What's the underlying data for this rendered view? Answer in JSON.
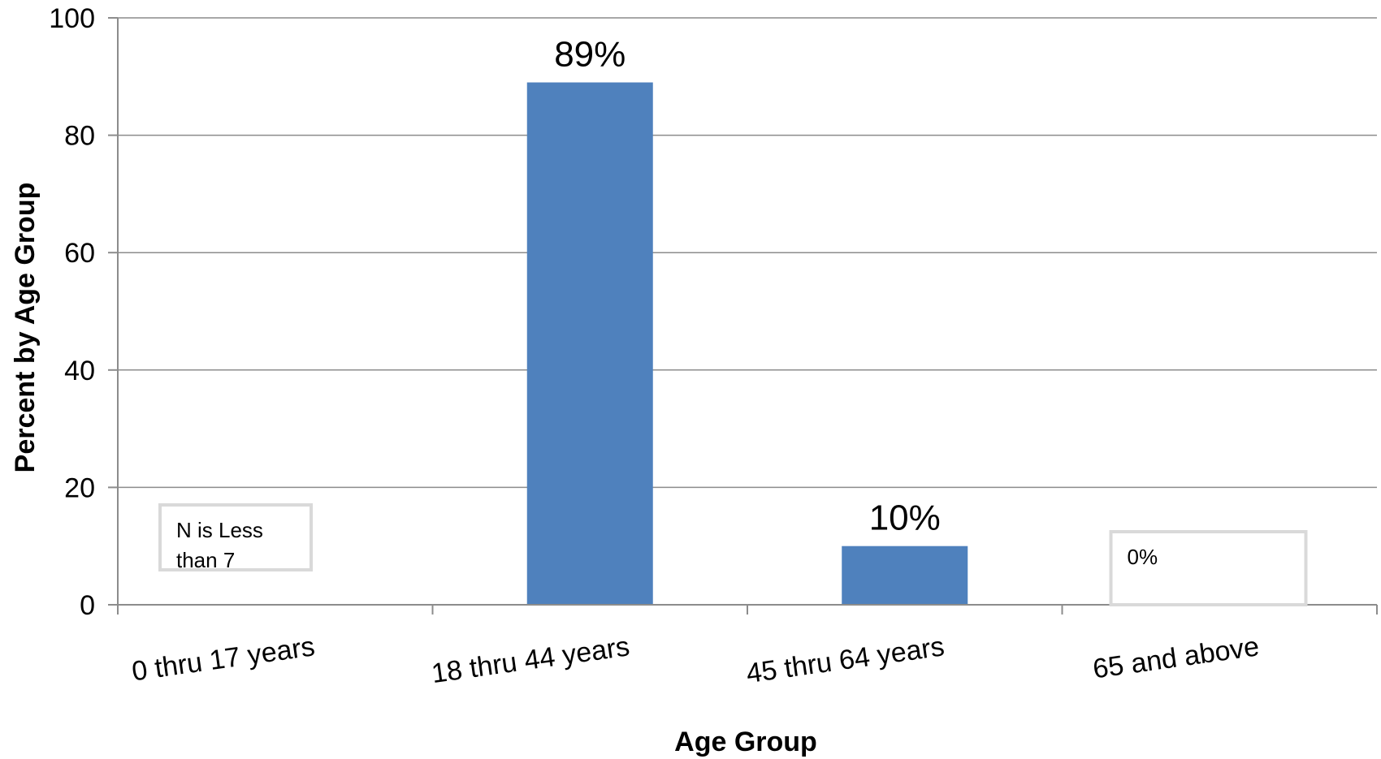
{
  "chart_data": {
    "type": "bar",
    "title": "",
    "xlabel": "Age Group",
    "ylabel": "Percent by Age Group",
    "categories": [
      "0 thru 17 years",
      "18 thru 44 years",
      "45 thru 64 years",
      "65 and above"
    ],
    "values": [
      null,
      89,
      10,
      0
    ],
    "data_labels": [
      "",
      "89%",
      "10%",
      ""
    ],
    "notes": [
      {
        "category_index": 0,
        "text_lines": [
          "N is  Less",
          "than 7"
        ]
      },
      {
        "category_index": 3,
        "text_lines": [
          "0%"
        ]
      }
    ],
    "ylim": [
      0,
      100
    ],
    "yticks": [
      0,
      20,
      40,
      60,
      80,
      100
    ],
    "grid": true,
    "legend": "none",
    "colors": {
      "bar": "#4f81bd",
      "grid": "#8c8c8c",
      "axis": "#8c8c8c",
      "note_border": "#d9d9d9"
    }
  }
}
